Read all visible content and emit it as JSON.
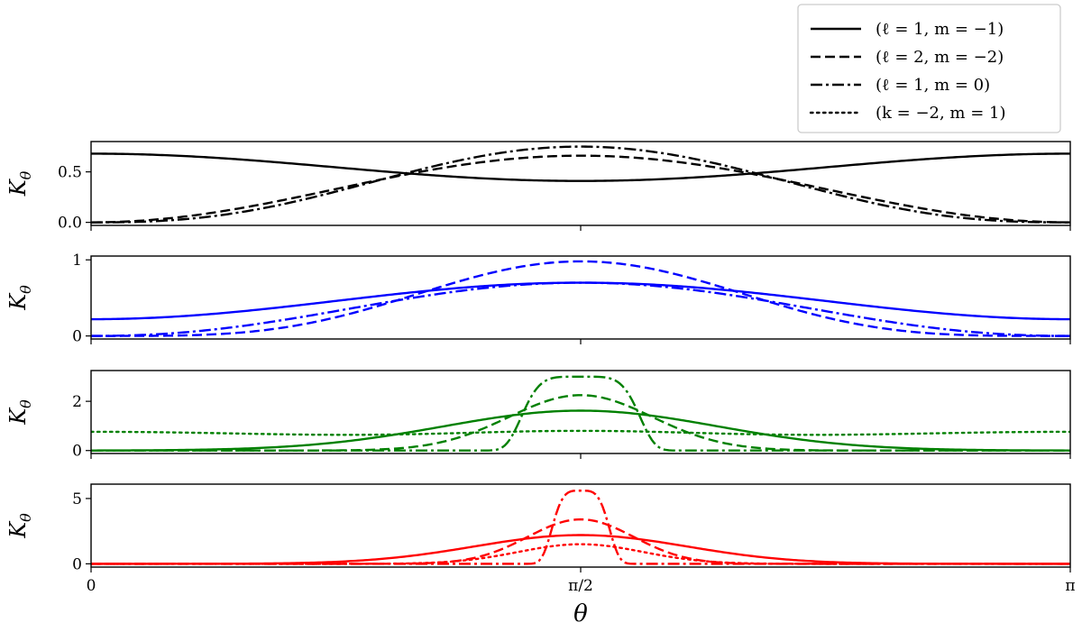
{
  "chart_data": {
    "type": "line",
    "xlabel": "θ",
    "x_range": [
      0,
      3.14159265
    ],
    "x_ticks": [
      {
        "value": 0,
        "label": "0"
      },
      {
        "value": 1.5707963,
        "label": "π/2"
      },
      {
        "value": 3.14159265,
        "label": "π"
      }
    ],
    "legend": {
      "placement": "top-right",
      "entries": [
        {
          "label": "(ℓ = 1, m = −1)",
          "style": "solid"
        },
        {
          "label": "(ℓ = 2, m = −2)",
          "style": "dashed"
        },
        {
          "label": "(ℓ = 1, m = 0)",
          "style": "dashdot"
        },
        {
          "label": "(k = −2, m = 1)",
          "style": "dotted"
        }
      ]
    },
    "panels": [
      {
        "color": "#000000",
        "ylabel": "K",
        "ylabel_sub": "θ",
        "ylim": [
          -0.03,
          0.8
        ],
        "yticks": [
          {
            "value": 0,
            "label": "0.0"
          },
          {
            "value": 0.5,
            "label": "0.5"
          }
        ],
        "series": [
          {
            "style": "solid",
            "kind": "cosmix",
            "params": {
              "a": 0.41,
              "b": 0.27
            }
          },
          {
            "style": "dashed",
            "kind": "sinpow",
            "params": {
              "amp": 0.66,
              "n": 2
            }
          },
          {
            "style": "dashdot",
            "kind": "sinpow",
            "params": {
              "amp": 0.75,
              "n": 2.6
            }
          }
        ]
      },
      {
        "color": "#0000ff",
        "ylabel": "K",
        "ylabel_sub": "θ",
        "ylim": [
          -0.04,
          1.05
        ],
        "yticks": [
          {
            "value": 0,
            "label": "0"
          },
          {
            "value": 1,
            "label": "1"
          }
        ],
        "series": [
          {
            "style": "solid",
            "kind": "cosmix",
            "params": {
              "a": 0.7,
              "b": -0.48
            }
          },
          {
            "style": "dashed",
            "kind": "sinpow",
            "params": {
              "amp": 0.98,
              "n": 4
            }
          },
          {
            "style": "dashdot",
            "kind": "sinpow",
            "params": {
              "amp": 0.7,
              "n": 2.2
            }
          }
        ]
      },
      {
        "color": "#008000",
        "ylabel": "K",
        "ylabel_sub": "θ",
        "ylim": [
          -0.12,
          3.25
        ],
        "yticks": [
          {
            "value": 0,
            "label": "0"
          },
          {
            "value": 2,
            "label": "2"
          }
        ],
        "series": [
          {
            "style": "solid",
            "kind": "gauss",
            "params": {
              "amp": 1.62,
              "w": 0.44
            }
          },
          {
            "style": "dashed",
            "kind": "gauss",
            "params": {
              "amp": 2.25,
              "w": 0.23
            }
          },
          {
            "style": "dashdot",
            "kind": "flattop",
            "params": {
              "amp": 3.0,
              "w": 0.2,
              "p": 5
            }
          },
          {
            "style": "dotted",
            "kind": "cosmix",
            "params": {
              "a": 0.3,
              "b": 0.46,
              "bump": 0.5,
              "bw": 0.45
            }
          }
        ]
      },
      {
        "color": "#ff0000",
        "ylabel": "K",
        "ylabel_sub": "θ",
        "ylim": [
          -0.25,
          6.1
        ],
        "yticks": [
          {
            "value": 0,
            "label": "0"
          },
          {
            "value": 5,
            "label": "5"
          }
        ],
        "series": [
          {
            "style": "solid",
            "kind": "gauss",
            "params": {
              "amp": 2.2,
              "w": 0.34
            }
          },
          {
            "style": "dashed",
            "kind": "gauss",
            "params": {
              "amp": 3.4,
              "w": 0.17
            }
          },
          {
            "style": "dashdot",
            "kind": "flattop",
            "params": {
              "amp": 5.6,
              "w": 0.1,
              "p": 4
            }
          },
          {
            "style": "dotted",
            "kind": "gauss",
            "params": {
              "amp": 1.5,
              "w": 0.2
            }
          }
        ]
      }
    ]
  }
}
